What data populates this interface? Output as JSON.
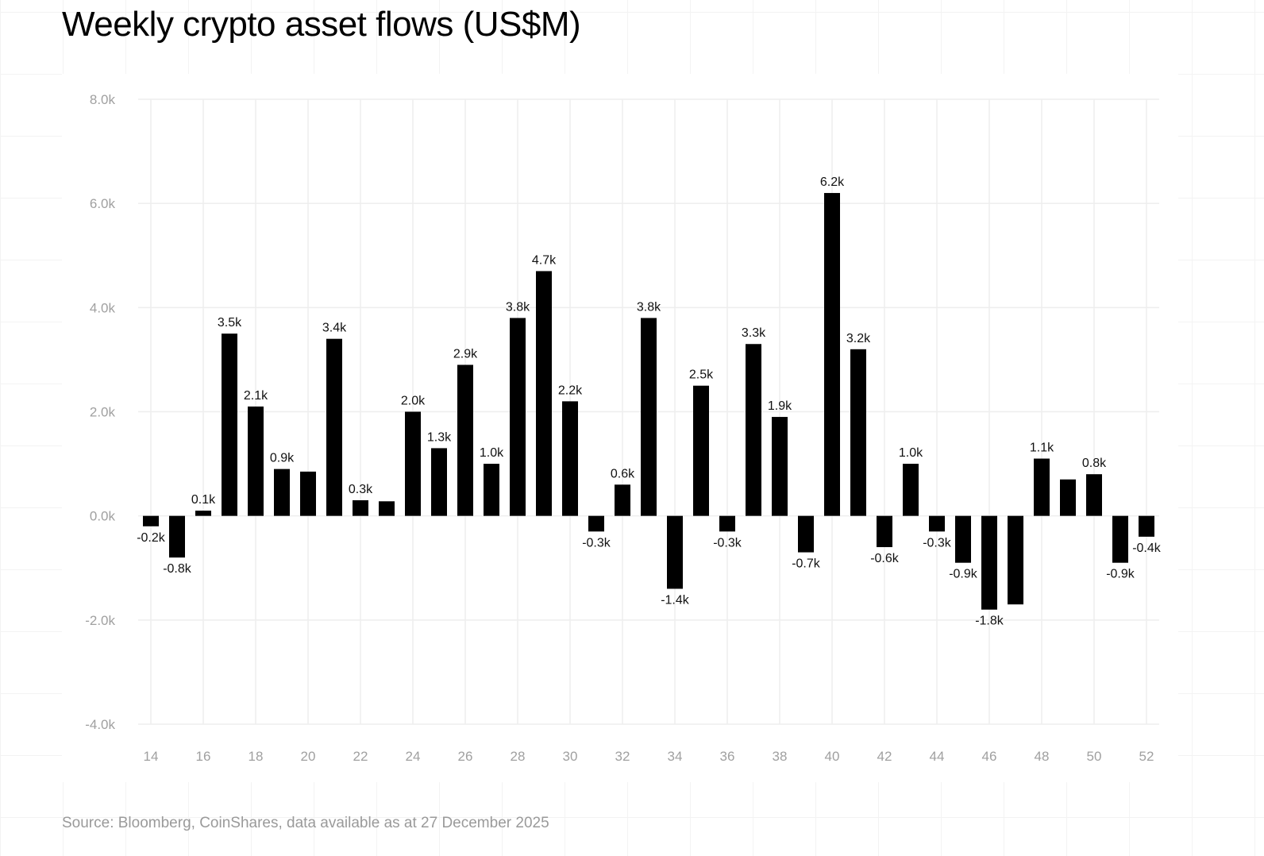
{
  "chart_data": {
    "type": "bar",
    "title": "Weekly crypto asset flows (US$M)",
    "source": "Source: Bloomberg, CoinShares, data available as at 27 December 2025",
    "xlabel": "",
    "ylabel": "",
    "ylim": [
      -4000,
      8000
    ],
    "yticks": [
      -4000,
      -2000,
      0,
      2000,
      4000,
      6000,
      8000
    ],
    "ytick_labels": [
      "-4.0k",
      "-2.0k",
      "0.0k",
      "2.0k",
      "4.0k",
      "6.0k",
      "8.0k"
    ],
    "x": [
      14,
      15,
      16,
      17,
      18,
      19,
      20,
      21,
      22,
      23,
      24,
      25,
      26,
      27,
      28,
      29,
      30,
      31,
      32,
      33,
      34,
      35,
      36,
      37,
      38,
      39,
      40,
      41,
      42,
      43,
      44,
      45,
      46,
      47,
      48,
      49,
      50,
      51,
      52
    ],
    "xtick_labels": [
      "14",
      "16",
      "18",
      "20",
      "22",
      "24",
      "26",
      "28",
      "30",
      "32",
      "34",
      "36",
      "38",
      "40",
      "42",
      "44",
      "46",
      "48",
      "50",
      "52"
    ],
    "values": [
      -200,
      -800,
      100,
      3500,
      2100,
      900,
      850,
      3400,
      300,
      280,
      2000,
      1300,
      2900,
      1000,
      3800,
      4700,
      2200,
      -300,
      600,
      3800,
      -1400,
      2500,
      -300,
      3300,
      1900,
      -700,
      6200,
      3200,
      -600,
      1000,
      -300,
      -900,
      -1800,
      -1700,
      1100,
      700,
      800,
      -900,
      -400
    ],
    "data_labels": [
      "-0.2k",
      "-0.8k",
      "0.1k",
      "3.5k",
      "2.1k",
      "0.9k",
      null,
      "3.4k",
      "0.3k",
      null,
      "2.0k",
      "1.3k",
      "2.9k",
      "1.0k",
      "3.8k",
      "4.7k",
      "2.2k",
      "-0.3k",
      "0.6k",
      "3.8k",
      "-1.4k",
      "2.5k",
      "-0.3k",
      "3.3k",
      "1.9k",
      "-0.7k",
      "6.2k",
      "3.2k",
      "-0.6k",
      "1.0k",
      "-0.3k",
      "-0.9k",
      "-1.8k",
      null,
      "1.1k",
      null,
      "0.8k",
      "-0.9k",
      "-0.4k"
    ],
    "grid": true,
    "bar_color": "#000000",
    "grid_color": "#eeeeee",
    "tick_color": "#a0a0a0"
  }
}
